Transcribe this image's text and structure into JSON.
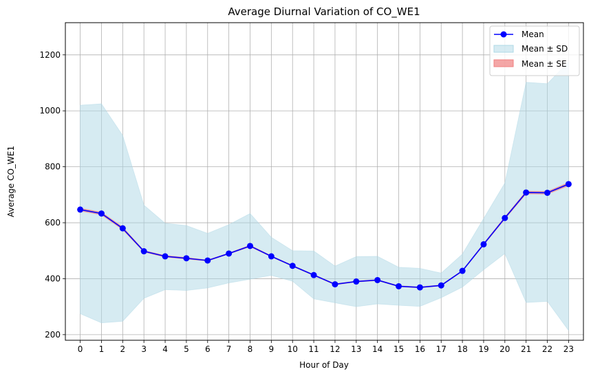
{
  "chart_data": {
    "type": "line",
    "title": "Average Diurnal Variation of CO_WE1",
    "xlabel": "Hour of Day",
    "ylabel": "Average CO_WE1",
    "x": [
      0,
      1,
      2,
      3,
      4,
      5,
      6,
      7,
      8,
      9,
      10,
      11,
      12,
      13,
      14,
      15,
      16,
      17,
      18,
      19,
      20,
      21,
      22,
      23
    ],
    "x_ticks": [
      "0",
      "1",
      "2",
      "3",
      "4",
      "5",
      "6",
      "7",
      "8",
      "9",
      "10",
      "11",
      "12",
      "13",
      "14",
      "15",
      "16",
      "17",
      "18",
      "19",
      "20",
      "21",
      "22",
      "23"
    ],
    "y_ticks": [
      "200",
      "400",
      "600",
      "800",
      "1000",
      "1200"
    ],
    "xlim": [
      -0.7,
      23.7
    ],
    "ylim": [
      180,
      1315
    ],
    "grid": true,
    "legend_position": "top-right",
    "series": [
      {
        "name": "Mean",
        "color": "#0000ff",
        "marker": "circle",
        "values": [
          647,
          633,
          580,
          498,
          480,
          473,
          465,
          490,
          517,
          480,
          446,
          413,
          380,
          390,
          395,
          373,
          369,
          376,
          428,
          523,
          617,
          708,
          707,
          738
        ]
      },
      {
        "name": "Mean ± SD",
        "color": "#add8e6",
        "upper": [
          1020,
          1025,
          912,
          663,
          598,
          590,
          562,
          593,
          633,
          548,
          500,
          499,
          445,
          479,
          480,
          441,
          437,
          420,
          488,
          615,
          742,
          1102,
          1097,
          1175
        ],
        "lower": [
          275,
          242,
          248,
          330,
          361,
          358,
          367,
          385,
          398,
          412,
          391,
          328,
          314,
          300,
          310,
          305,
          301,
          332,
          370,
          432,
          490,
          315,
          319,
          215
        ]
      },
      {
        "name": "Mean ± SE",
        "color": "#f08080",
        "upper": [
          652,
          638,
          585,
          501,
          483,
          476,
          467,
          492,
          520,
          482,
          448,
          415,
          382,
          392,
          397,
          375,
          371,
          378,
          430,
          526,
          621,
          713,
          712,
          744
        ],
        "lower": [
          642,
          628,
          575,
          495,
          477,
          470,
          463,
          488,
          514,
          478,
          444,
          411,
          378,
          388,
          393,
          371,
          367,
          374,
          426,
          520,
          613,
          703,
          702,
          732
        ]
      }
    ]
  }
}
